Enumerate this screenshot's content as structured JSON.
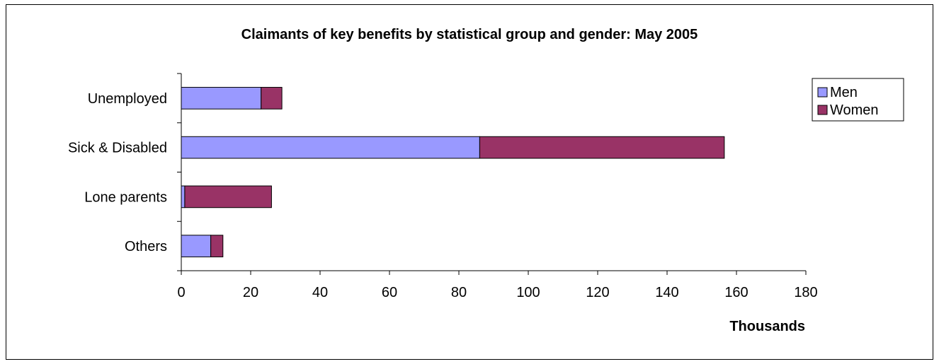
{
  "chart_data": {
    "type": "bar",
    "orientation": "horizontal",
    "stacked": true,
    "title": "Claimants of key benefits by statistical group and gender: May 2005",
    "xlabel": "Thousands",
    "ylabel": "",
    "categories": [
      "Unemployed",
      "Sick & Disabled",
      "Lone parents",
      "Others"
    ],
    "series": [
      {
        "name": "Men",
        "values": [
          23,
          86,
          1,
          8.5
        ],
        "color": "#9999ff"
      },
      {
        "name": "Women",
        "values": [
          6,
          70.5,
          25,
          3.5
        ],
        "color": "#993366"
      }
    ],
    "xlim": [
      0,
      180
    ],
    "xticks": [
      "0",
      "20",
      "40",
      "60",
      "80",
      "100",
      "120",
      "140",
      "160",
      "180"
    ],
    "grid": false,
    "legend_position": "top-right"
  }
}
